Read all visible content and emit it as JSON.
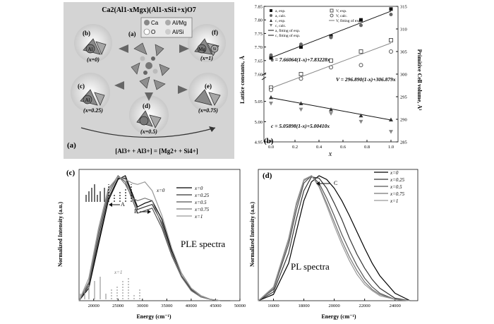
{
  "panel_a": {
    "formula": "Ca2(Al1-xMgx)(Al1-xSi1+x)O7",
    "label": "(a)",
    "legend": [
      "Ca",
      "Al/Mg",
      "O",
      "Al/Si"
    ],
    "sub_labels": [
      "(b)",
      "(c)",
      "(d)",
      "(e)",
      "(f)",
      "(a)"
    ],
    "x_labels": [
      "(x=0)",
      "(x=0.25)",
      "(x=0.5)",
      "(x=0.75)",
      "(x=1)"
    ],
    "tetra_labels": [
      "Al",
      "Al",
      "Mg",
      "Si"
    ],
    "equation": "[Al3+ + Al3+] = [Mg2+ + Si4+]"
  },
  "panel_b": {
    "label": "(b)",
    "xlabel": "x",
    "ylabel_left": "Lattice constants, Å",
    "ylabel_right": "Primitive Cell volume, Å³",
    "legend_left": [
      "a, exp.",
      "a, calc.",
      "c, exp.",
      "c, calc.",
      "a, fitting of exp.",
      "c, fitting of exp."
    ],
    "legend_right": [
      "V, exp.",
      "V, calc.",
      "V, fitting of exp."
    ],
    "eq_a": "a = 7.66064(1-x)+7.83228x",
    "eq_v": "V = 296.890(1-x)+306.879x",
    "eq_c": "c = 5.05898(1-x)+5.00410x"
  },
  "panel_c": {
    "label": "(c)",
    "title": "PLE spectra",
    "xlabel": "Energy (cm⁻¹)",
    "ylabel": "Normalized Intensity (a.u.)",
    "legend": [
      "x=0",
      "x=0.25",
      "x=0.5",
      "x=0.75",
      "x=1"
    ],
    "annot_A": "A",
    "annot_B": "B",
    "annot_x0": "x=0",
    "annot_x1": "x=1",
    "xticks": [
      "20000",
      "25000",
      "30000",
      "35000",
      "40000",
      "45000",
      "50000"
    ]
  },
  "panel_d": {
    "label": "(d)",
    "title": "PL spectra",
    "xlabel": "Energy (cm⁻¹)",
    "ylabel": "Normalized Intensity (a.u.)",
    "legend": [
      "x=0",
      "x=0.25",
      "x=0.5",
      "x=0.75",
      "x=1"
    ],
    "annot_C": "C",
    "xticks": [
      "16000",
      "18000",
      "20000",
      "22000",
      "24000"
    ]
  },
  "chart_data": [
    {
      "type": "scatter",
      "title": "",
      "xlabel": "x",
      "ylabel": "Lattice constants, Å",
      "ylabel_right": "Primitive Cell volume, Å³",
      "x": [
        0,
        0.25,
        0.5,
        0.75,
        1.0
      ],
      "xticks": [
        0.0,
        0.2,
        0.4,
        0.6,
        0.8,
        1.0
      ],
      "ylim": [
        4.95,
        7.85
      ],
      "yticks_left": [
        4.95,
        5.0,
        5.05,
        7.6,
        7.65,
        7.7,
        7.75,
        7.8,
        7.85
      ],
      "y2lim": [
        285,
        315
      ],
      "yticks_right": [
        285,
        290,
        295,
        300,
        305,
        310,
        315
      ],
      "series": [
        {
          "name": "a, exp.",
          "axis": "left",
          "values": [
            7.66,
            7.7,
            7.74,
            7.8,
            7.84
          ]
        },
        {
          "name": "a, calc.",
          "axis": "left",
          "values": [
            7.67,
            7.71,
            7.735,
            7.78,
            7.82
          ]
        },
        {
          "name": "c, exp.",
          "axis": "left",
          "values": [
            5.06,
            5.045,
            5.03,
            5.015,
            5.005
          ]
        },
        {
          "name": "c, calc.",
          "axis": "left",
          "values": [
            5.045,
            5.03,
            5.02,
            5.0,
            4.975
          ]
        },
        {
          "name": "V, exp.",
          "axis": "right",
          "values": [
            297.0,
            300.0,
            303.0,
            305.0,
            307.5
          ]
        },
        {
          "name": "V, calc.",
          "axis": "right",
          "values": [
            296.5,
            299.0,
            301.5,
            302.0,
            305.0
          ]
        }
      ]
    },
    {
      "type": "line",
      "title": "PLE spectra",
      "xlabel": "Energy (cm⁻¹)",
      "ylabel": "Normalized Intensity (a.u.)",
      "xlim": [
        17000,
        50000
      ],
      "ylim": [
        0,
        1.05
      ],
      "x": [
        17000,
        19000,
        21000,
        23000,
        25000,
        26500,
        28000,
        29000,
        30500,
        32000,
        34000,
        36000,
        38000,
        40000,
        42000,
        44000,
        46000,
        48000
      ],
      "series": [
        {
          "name": "x=0",
          "values": [
            0.0,
            0.1,
            0.45,
            0.8,
            0.97,
            1.0,
            0.85,
            0.75,
            0.78,
            0.8,
            0.65,
            0.4,
            0.22,
            0.1,
            0.04,
            0.01,
            0.0,
            0.0
          ]
        },
        {
          "name": "x=0.25",
          "values": [
            0.0,
            0.12,
            0.48,
            0.82,
            0.98,
            0.98,
            0.83,
            0.73,
            0.75,
            0.77,
            0.62,
            0.38,
            0.2,
            0.09,
            0.03,
            0.01,
            0.0,
            0.0
          ]
        },
        {
          "name": "x=0.5",
          "values": [
            0.0,
            0.14,
            0.52,
            0.85,
            1.0,
            0.95,
            0.8,
            0.7,
            0.72,
            0.74,
            0.58,
            0.36,
            0.19,
            0.08,
            0.03,
            0.01,
            0.0,
            0.0
          ]
        },
        {
          "name": "x=0.75",
          "values": [
            0.0,
            0.15,
            0.55,
            0.88,
            1.0,
            0.93,
            0.82,
            0.8,
            0.82,
            0.8,
            0.6,
            0.37,
            0.19,
            0.08,
            0.03,
            0.01,
            0.0,
            0.0
          ]
        },
        {
          "name": "x=1",
          "values": [
            0.0,
            0.18,
            0.58,
            0.9,
            0.99,
            0.97,
            0.94,
            0.93,
            0.95,
            0.88,
            0.68,
            0.42,
            0.22,
            0.1,
            0.04,
            0.01,
            0.0,
            0.0
          ]
        }
      ]
    },
    {
      "type": "line",
      "title": "PL spectra",
      "xlabel": "Energy (cm⁻¹)",
      "ylabel": "Normalized Intensity (a.u.)",
      "xlim": [
        15000,
        25500
      ],
      "ylim": [
        0,
        1.05
      ],
      "x": [
        15000,
        16000,
        17000,
        17500,
        18000,
        18500,
        19000,
        19500,
        20000,
        20500,
        21000,
        21500,
        22000,
        22500,
        23000,
        24000,
        25000
      ],
      "series": [
        {
          "name": "x=0",
          "values": [
            0.0,
            0.05,
            0.3,
            0.55,
            0.8,
            0.95,
            1.0,
            0.97,
            0.9,
            0.8,
            0.68,
            0.55,
            0.42,
            0.3,
            0.2,
            0.06,
            0.0
          ]
        },
        {
          "name": "x=0.25",
          "values": [
            0.0,
            0.07,
            0.38,
            0.65,
            0.88,
            0.99,
            0.98,
            0.9,
            0.78,
            0.65,
            0.5,
            0.37,
            0.26,
            0.17,
            0.1,
            0.02,
            0.0
          ]
        },
        {
          "name": "x=0.5",
          "values": [
            0.0,
            0.09,
            0.45,
            0.72,
            0.94,
            1.0,
            0.94,
            0.82,
            0.68,
            0.53,
            0.4,
            0.28,
            0.18,
            0.11,
            0.06,
            0.01,
            0.0
          ]
        },
        {
          "name": "x=0.75",
          "values": [
            0.0,
            0.1,
            0.48,
            0.76,
            0.96,
            1.0,
            0.92,
            0.78,
            0.63,
            0.48,
            0.35,
            0.24,
            0.15,
            0.09,
            0.05,
            0.01,
            0.0
          ]
        },
        {
          "name": "x=1",
          "values": [
            0.0,
            0.11,
            0.5,
            0.78,
            0.97,
            1.0,
            0.91,
            0.76,
            0.6,
            0.45,
            0.32,
            0.21,
            0.13,
            0.08,
            0.04,
            0.01,
            0.0
          ]
        }
      ]
    }
  ]
}
